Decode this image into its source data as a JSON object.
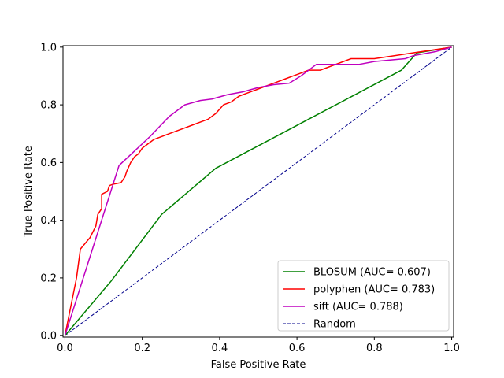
{
  "chart_data": {
    "type": "line",
    "title": "",
    "xlabel": "False Positive Rate",
    "ylabel": "True Positive Rate",
    "xlim": [
      -0.005,
      1.005
    ],
    "ylim": [
      -0.005,
      1.005
    ],
    "xticks": [
      "0.0",
      "0.2",
      "0.4",
      "0.6",
      "0.8",
      "1.0"
    ],
    "yticks": [
      "0.0",
      "0.2",
      "0.4",
      "0.6",
      "0.8",
      "1.0"
    ],
    "grid": false,
    "legend_position": "lower-right",
    "series": [
      {
        "name": "BLOSUM (AUC= 0.607)",
        "color": "#008000",
        "dashed": false,
        "x": [
          0.0,
          0.12,
          0.25,
          0.39,
          0.87,
          0.91,
          1.0
        ],
        "y": [
          0.0,
          0.19,
          0.42,
          0.58,
          0.92,
          0.98,
          1.0
        ]
      },
      {
        "name": "polyphen (AUC= 0.783)",
        "color": "#ff0000",
        "dashed": false,
        "x": [
          0.0,
          0.03,
          0.04,
          0.065,
          0.08,
          0.085,
          0.095,
          0.095,
          0.11,
          0.115,
          0.125,
          0.145,
          0.155,
          0.16,
          0.17,
          0.18,
          0.19,
          0.2,
          0.21,
          0.23,
          0.25,
          0.27,
          0.29,
          0.31,
          0.33,
          0.35,
          0.37,
          0.39,
          0.41,
          0.43,
          0.45,
          0.47,
          0.49,
          0.51,
          0.53,
          0.55,
          0.57,
          0.59,
          0.61,
          0.63,
          0.66,
          0.7,
          0.74,
          0.8,
          0.9,
          1.0
        ],
        "y": [
          0.0,
          0.2,
          0.3,
          0.34,
          0.38,
          0.42,
          0.44,
          0.49,
          0.5,
          0.52,
          0.525,
          0.53,
          0.55,
          0.57,
          0.6,
          0.62,
          0.63,
          0.65,
          0.66,
          0.68,
          0.69,
          0.7,
          0.71,
          0.72,
          0.73,
          0.74,
          0.75,
          0.77,
          0.8,
          0.81,
          0.83,
          0.84,
          0.85,
          0.86,
          0.87,
          0.88,
          0.89,
          0.9,
          0.91,
          0.92,
          0.92,
          0.94,
          0.96,
          0.96,
          0.98,
          1.0
        ]
      },
      {
        "name": "sift (AUC= 0.788)",
        "color": "#bf00bf",
        "dashed": false,
        "x": [
          0.0,
          0.14,
          0.22,
          0.27,
          0.31,
          0.35,
          0.38,
          0.42,
          0.46,
          0.5,
          0.54,
          0.58,
          0.61,
          0.65,
          0.7,
          0.76,
          0.8,
          0.88,
          0.9,
          0.96,
          1.0
        ],
        "y": [
          0.0,
          0.59,
          0.69,
          0.76,
          0.8,
          0.815,
          0.82,
          0.835,
          0.845,
          0.86,
          0.87,
          0.875,
          0.9,
          0.94,
          0.94,
          0.94,
          0.95,
          0.96,
          0.97,
          0.985,
          1.0
        ]
      },
      {
        "name": "Random",
        "color": "#00008b",
        "dashed": true,
        "x": [
          0.0,
          1.0
        ],
        "y": [
          0.0,
          1.0
        ]
      }
    ]
  }
}
